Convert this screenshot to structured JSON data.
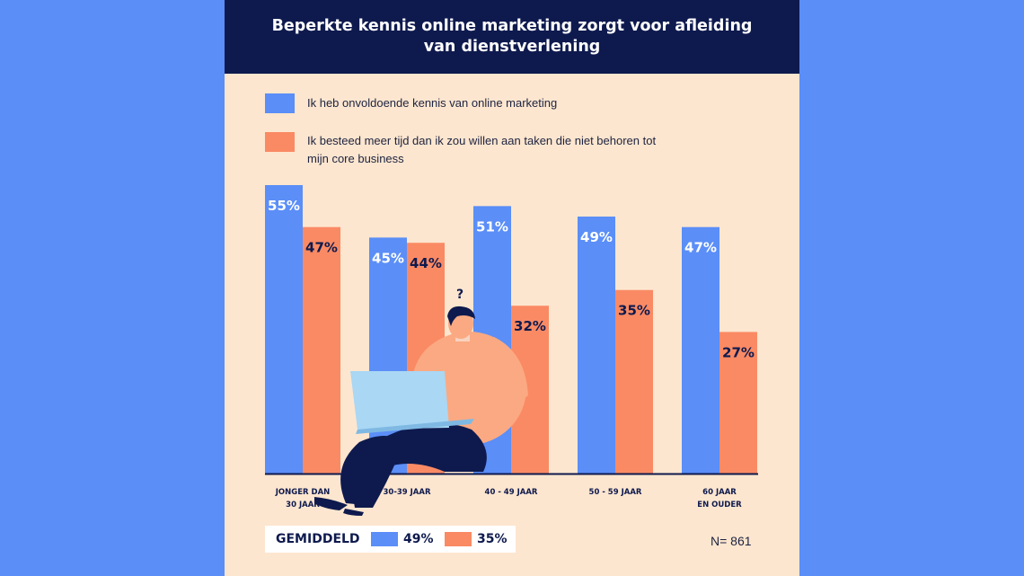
{
  "title": {
    "line1": "Beperkte kennis online marketing zorgt voor afleiding",
    "line2": "van dienstverlening"
  },
  "colors": {
    "series1": "#5b8ef7",
    "series2": "#fa8a64",
    "header": "#0e1a4e",
    "card": "#fde6cf",
    "page": "#5b8ef7"
  },
  "legend": {
    "item1": "Ik heb onvoldoende kennis van online marketing",
    "item2_line1": "Ik besteed meer tijd dan ik zou willen aan taken die niet behoren tot",
    "item2_line2": "mijn core business"
  },
  "chart_data": {
    "type": "bar",
    "categories": [
      [
        "JONGER DAN",
        "30 JAAR"
      ],
      [
        "30-39 JAAR"
      ],
      [
        "40 - 49 JAAR"
      ],
      [
        "50 - 59 JAAR"
      ],
      [
        "60 JAAR",
        "EN OUDER"
      ]
    ],
    "series": [
      {
        "name": "Ik heb onvoldoende kennis van online marketing",
        "values": [
          55,
          45,
          51,
          49,
          47
        ]
      },
      {
        "name": "Ik besteed meer tijd dan ik zou willen aan taken die niet behoren tot mijn core business",
        "values": [
          47,
          44,
          32,
          35,
          27
        ]
      }
    ],
    "value_suffix": "%",
    "ylim": [
      0,
      55
    ],
    "grid": false,
    "legend_position": "top-left"
  },
  "average": {
    "label": "GEMIDDELD",
    "value1": "49%",
    "value2": "35%"
  },
  "sample_size": "N= 861",
  "illustration": {
    "question_mark": "?"
  }
}
